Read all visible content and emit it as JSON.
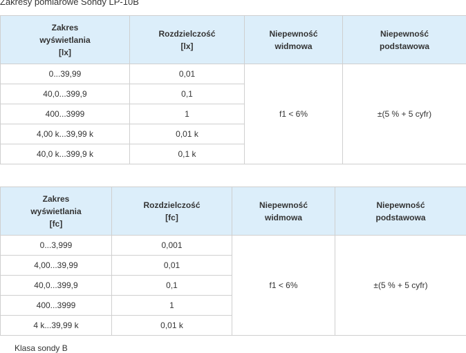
{
  "title": "Zakresy pomiarowe Sondy LP-10B",
  "tables": [
    {
      "header": [
        [
          "Zakres",
          "wyświetlania",
          "[lx]"
        ],
        [
          "Rozdzielczość",
          "[lx]"
        ],
        [
          "Niepewność",
          "widmowa"
        ],
        [
          "Niepewność",
          "podstawowa"
        ]
      ],
      "rows": [
        [
          "0...39,99",
          "0,01"
        ],
        [
          "40,0...399,9",
          "0,1"
        ],
        [
          "400...3999",
          "1"
        ],
        [
          "4,00 k...39,99 k",
          "0,01 k"
        ],
        [
          "40,0 k...399,9 k",
          "0,1 k"
        ]
      ],
      "widmowa": "f1 < 6%",
      "podstawowa": "±(5 % + 5 cyfr)"
    },
    {
      "header": [
        [
          "Zakres",
          "wyświetlania",
          "[fc]"
        ],
        [
          "Rozdzielczość",
          "[fc]"
        ],
        [
          "Niepewność",
          "widmowa"
        ],
        [
          "Niepewność",
          "podstawowa"
        ]
      ],
      "rows": [
        [
          "0...3,999",
          "0,001"
        ],
        [
          "4,00...39,99",
          "0,01"
        ],
        [
          "40,0...399,9",
          "0,1"
        ],
        [
          "400...3999",
          "1"
        ],
        [
          "4 k...39,99 k",
          "0,01 k"
        ]
      ],
      "widmowa": "f1 < 6%",
      "podstawowa": "±(5 % + 5 cyfr)"
    }
  ],
  "note": "Klasa sondy B"
}
